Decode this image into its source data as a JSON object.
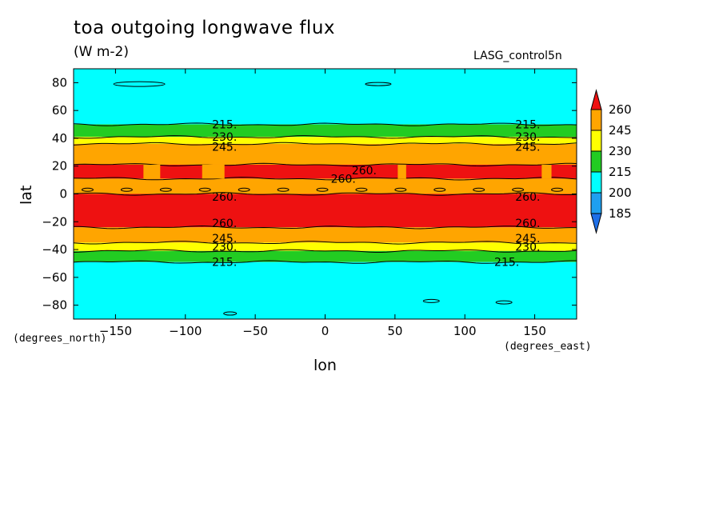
{
  "chart_data": {
    "type": "heatmap",
    "title": "toa outgoing longwave flux",
    "units": "(W m-2)",
    "run_label": "LASG_control5n",
    "xlabel": "lon",
    "ylabel": "lat",
    "x_units": "(degrees_east)",
    "y_units": "(degrees_north)",
    "xlim": [
      -180,
      180
    ],
    "ylim": [
      -90,
      90
    ],
    "x_ticks": [
      -150,
      -100,
      -50,
      0,
      50,
      100,
      150
    ],
    "y_ticks": [
      80,
      60,
      40,
      20,
      0,
      -20,
      -40,
      -60,
      -80
    ],
    "colorbar": {
      "levels": [
        185,
        200,
        215,
        230,
        245,
        260
      ],
      "labels": [
        "260",
        "245",
        "230",
        "215",
        "200",
        "185"
      ],
      "colors": {
        "below_185": "#1e6fe8",
        "185_200": "#1e9ff0",
        "200_215": "#00ffff",
        "215_230": "#22cc22",
        "230_245": "#ffff00",
        "245_260": "#ffa500",
        "above_260": "#ee1111"
      }
    },
    "bands": [
      {
        "lat_from": 90,
        "lat_to": 50,
        "level": "200_215"
      },
      {
        "lat_from": 50,
        "lat_to": 41,
        "level": "215_230"
      },
      {
        "lat_from": 41,
        "lat_to": 36,
        "level": "230_245"
      },
      {
        "lat_from": 36,
        "lat_to": 21,
        "level": "245_260"
      },
      {
        "lat_from": 21,
        "lat_to": 11,
        "level": "above_260",
        "note_free": true
      },
      {
        "lat_from": 11,
        "lat_to": 0,
        "level": "245_260"
      },
      {
        "lat_from": 0,
        "lat_to": -24,
        "level": "above_260"
      },
      {
        "lat_from": -24,
        "lat_to": -35,
        "level": "245_260"
      },
      {
        "lat_from": -35,
        "lat_to": -41,
        "level": "230_245"
      },
      {
        "lat_from": -41,
        "lat_to": -49,
        "level": "215_230"
      },
      {
        "lat_from": -49,
        "lat_to": -90,
        "level": "200_215"
      }
    ],
    "contour_labels": [
      {
        "text": "215.",
        "lon": -72,
        "lat": 50
      },
      {
        "text": "230.",
        "lon": -72,
        "lat": 41
      },
      {
        "text": "245.",
        "lon": -72,
        "lat": 34
      },
      {
        "text": "215.",
        "lon": 145,
        "lat": 50
      },
      {
        "text": "230.",
        "lon": 145,
        "lat": 41
      },
      {
        "text": "245.",
        "lon": 145,
        "lat": 34
      },
      {
        "text": "260.",
        "lon": 28,
        "lat": 17
      },
      {
        "text": "260.",
        "lon": 13,
        "lat": 11
      },
      {
        "text": "260.",
        "lon": -72,
        "lat": -2
      },
      {
        "text": "260.",
        "lon": 145,
        "lat": -2
      },
      {
        "text": "260.",
        "lon": -72,
        "lat": -21
      },
      {
        "text": "260.",
        "lon": 145,
        "lat": -21
      },
      {
        "text": "245.",
        "lon": -72,
        "lat": -32
      },
      {
        "text": "230.",
        "lon": -72,
        "lat": -38
      },
      {
        "text": "245.",
        "lon": 145,
        "lat": -32
      },
      {
        "text": "230.",
        "lon": 145,
        "lat": -38
      },
      {
        "text": "215.",
        "lon": -72,
        "lat": -49
      },
      {
        "text": "215.",
        "lon": 130,
        "lat": -49
      }
    ]
  }
}
